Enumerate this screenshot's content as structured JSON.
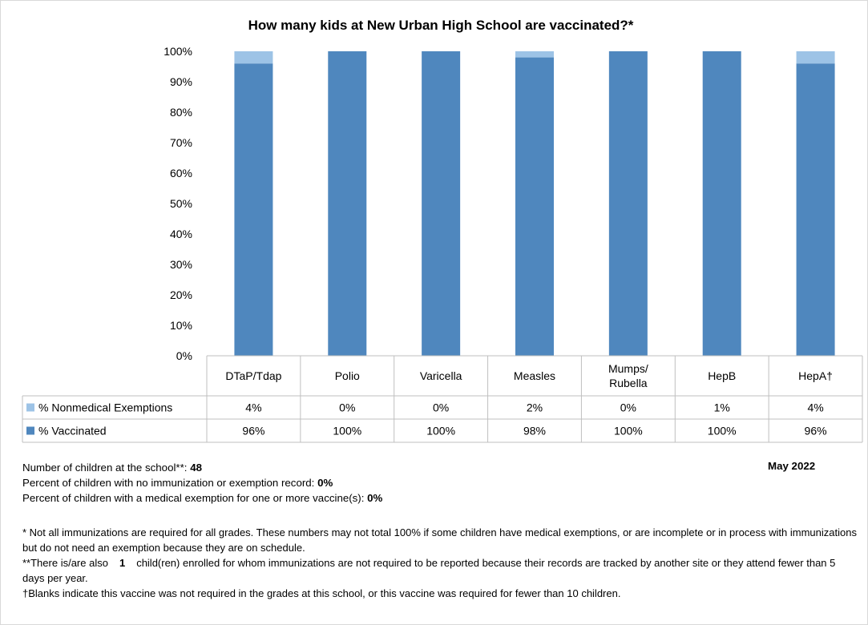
{
  "chart_data": {
    "type": "bar",
    "stacked": true,
    "title": "How many kids at New Urban High School are vaccinated?*",
    "categories": [
      "DTaP/Tdap",
      "Polio",
      "Varicella",
      "Measles",
      "Mumps/ Rubella",
      "HepB",
      "HepA†"
    ],
    "category_lines": [
      [
        "DTaP/Tdap"
      ],
      [
        "Polio"
      ],
      [
        "Varicella"
      ],
      [
        "Measles"
      ],
      [
        "Mumps/",
        "Rubella"
      ],
      [
        "HepB"
      ],
      [
        "HepA†"
      ]
    ],
    "series": [
      {
        "name": "% Vaccinated",
        "color": "#4F87BE",
        "values": [
          96,
          100,
          100,
          98,
          100,
          100,
          96
        ],
        "labels": [
          "96%",
          "100%",
          "100%",
          "98%",
          "100%",
          "100%",
          "96%"
        ]
      },
      {
        "name": "% Nonmedical Exemptions",
        "color": "#9DC3E6",
        "values": [
          4,
          0,
          0,
          2,
          0,
          1,
          4
        ],
        "labels": [
          "4%",
          "0%",
          "0%",
          "2%",
          "0%",
          "1%",
          "4%"
        ]
      }
    ],
    "ylim": [
      0,
      100
    ],
    "yticks": [
      "0%",
      "10%",
      "20%",
      "30%",
      "40%",
      "50%",
      "60%",
      "70%",
      "80%",
      "90%",
      "100%"
    ],
    "legend": "data-table-below-chart",
    "grid": false
  },
  "info": {
    "count_label": "Number of children at the school**:",
    "count_value": "48",
    "date": "May 2022",
    "no_record_label": "Percent of children with no immunization or exemption record:",
    "no_record_value": "0%",
    "medical_label": "Percent of children with a medical exemption for one or more vaccine(s):",
    "medical_value": "0%"
  },
  "footnotes": {
    "note1": "* Not all immunizations are required for all grades. These numbers may not total 100% if some children have medical exemptions, or are incomplete or in process with immunizations but do not need an exemption because they are on schedule.",
    "note2_prefix": "**There is/are also",
    "note2_count": "1",
    "note2_suffix": "child(ren) enrolled for whom immunizations are not required to be reported because their records are tracked by another site or they attend fewer than 5 days per year.",
    "note3": "†Blanks indicate this vaccine was not required in the grades at this school, or this vaccine was required for fewer than 10 children."
  }
}
